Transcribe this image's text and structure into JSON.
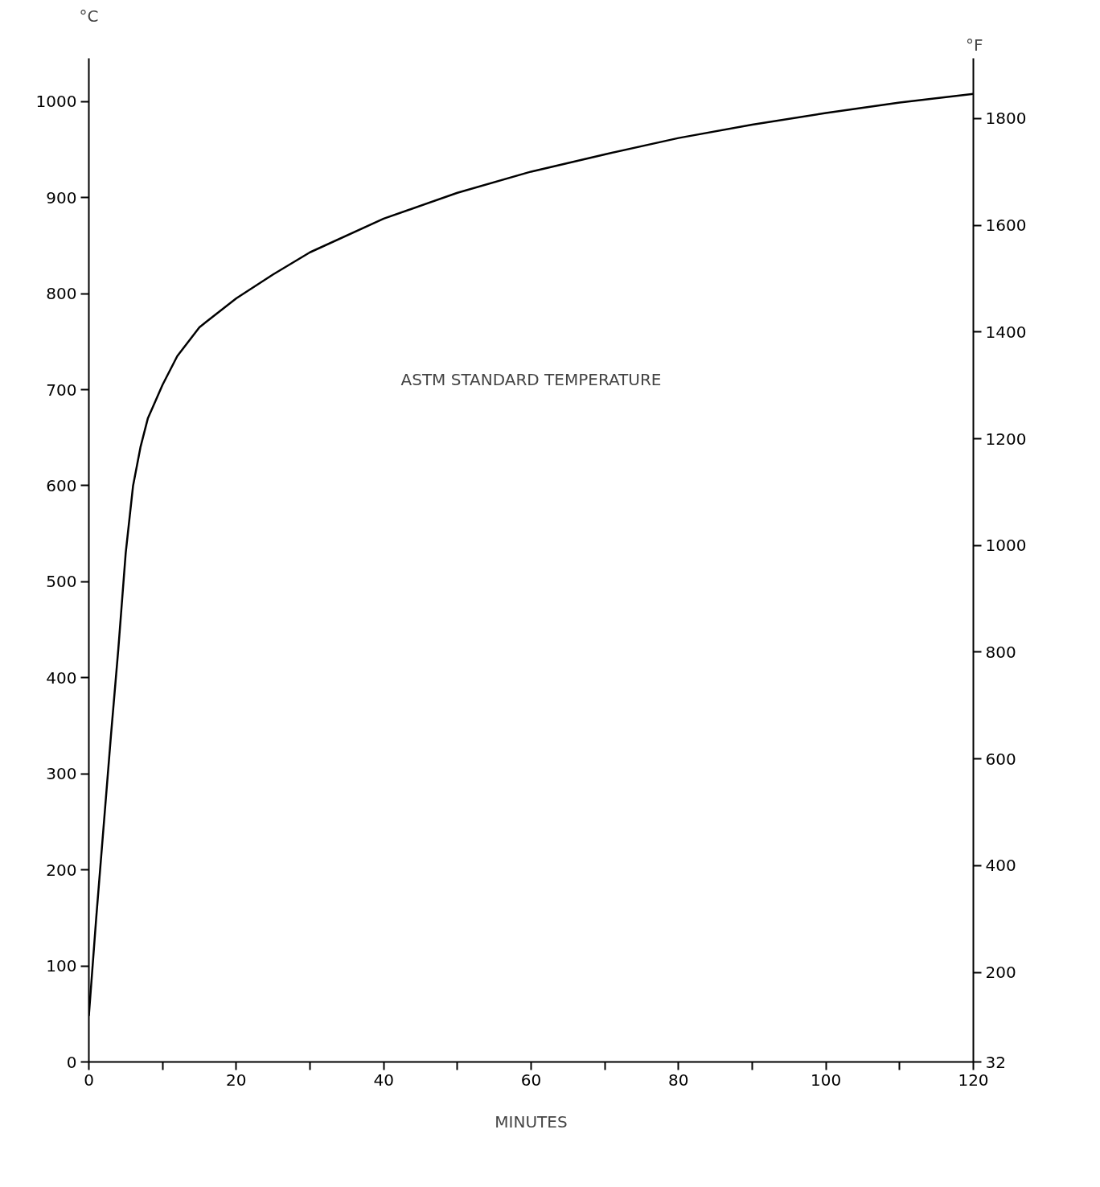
{
  "chart_data": {
    "type": "line",
    "annotations": [
      "ASTM STANDARD TEMPERATURE"
    ],
    "xlabel": "MINUTES",
    "ylabel": "°C",
    "y2label": "°F",
    "x": [
      0,
      1,
      2,
      3,
      4,
      5,
      6,
      7,
      8,
      10,
      12,
      15,
      20,
      25,
      30,
      40,
      50,
      60,
      70,
      80,
      90,
      100,
      110,
      120
    ],
    "series": [
      {
        "color": "#000000",
        "values": [
          48,
          150,
          245,
          340,
          430,
          530,
          600,
          640,
          670,
          705,
          735,
          765,
          795,
          820,
          843,
          878,
          905,
          927,
          945,
          962,
          976,
          988,
          999,
          1008
        ]
      }
    ],
    "xlim": [
      0,
      120
    ],
    "xticks": [
      0,
      {
        "value": 10,
        "label": null
      },
      20,
      {
        "value": 30,
        "label": null
      },
      40,
      {
        "value": 50,
        "label": null
      },
      60,
      {
        "value": 70,
        "label": null
      },
      80,
      {
        "value": 90,
        "label": null
      },
      100,
      {
        "value": 110,
        "label": null
      },
      120
    ],
    "ylim": [
      0,
      1045
    ],
    "yticks": [
      0,
      100,
      200,
      300,
      400,
      500,
      600,
      700,
      800,
      900,
      1000
    ],
    "y2lim": [
      32,
      1913
    ],
    "y2ticks": [
      32,
      200,
      400,
      600,
      800,
      1000,
      1200,
      1400,
      1600,
      1800
    ],
    "grid": false,
    "marker": "none",
    "line_style": "solid"
  }
}
